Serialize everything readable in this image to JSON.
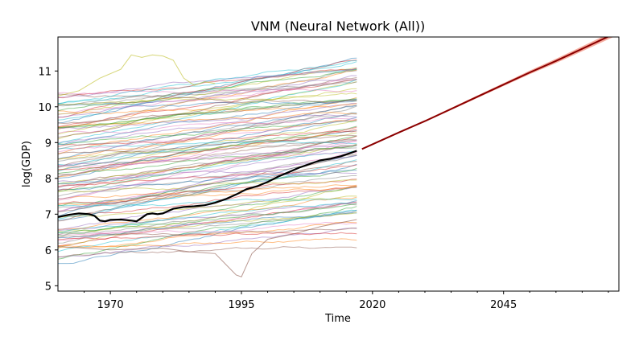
{
  "chart_data": {
    "type": "line",
    "title": "VNM (Neural Network (All))",
    "xlabel": "Time",
    "ylabel": "log(GDP)",
    "xlim": [
      1960,
      2067
    ],
    "ylim": [
      4.85,
      11.95
    ],
    "x_ticks": [
      1970,
      1995,
      2020,
      2045
    ],
    "x_tick_labels": [
      "1970",
      "1995",
      "2020",
      "2045"
    ],
    "y_ticks": [
      5,
      6,
      7,
      8,
      9,
      10,
      11
    ],
    "y_tick_labels": [
      "5",
      "6",
      "7",
      "8",
      "9",
      "10",
      "11"
    ],
    "grid": false,
    "legend": "none",
    "series": [
      {
        "role": "other-countries-history",
        "x_range": [
          1960,
          2017
        ],
        "count": 110,
        "y_start_range": [
          5.8,
          10.3
        ],
        "y_end_range": [
          6.5,
          11.3
        ],
        "highlighted_outlier": {
          "x": [
            1960,
            1964,
            1968,
            1972,
            1974,
            1976,
            1978,
            1980,
            1982,
            1984,
            1986,
            1988,
            1990
          ],
          "y": [
            10.3,
            10.45,
            10.8,
            11.05,
            11.45,
            11.38,
            11.45,
            11.42,
            11.3,
            10.8,
            10.6,
            10.7,
            10.65
          ],
          "color": "#bcbd22"
        },
        "dip_outlier": {
          "x": [
            1960,
            1970,
            1980,
            1985,
            1990,
            1992,
            1994,
            1995,
            1997,
            2000,
            2005,
            2010,
            2017
          ],
          "y": [
            6.1,
            6.0,
            6.05,
            5.95,
            5.9,
            5.6,
            5.3,
            5.25,
            5.9,
            6.3,
            6.45,
            6.65,
            6.85
          ],
          "color": "#8c564b"
        }
      },
      {
        "role": "vnm-history",
        "color": "#000000",
        "x": [
          1960,
          1962,
          1964,
          1966,
          1967,
          1968,
          1969,
          1970,
          1972,
          1974,
          1975,
          1976,
          1977,
          1978,
          1979,
          1980,
          1982,
          1984,
          1986,
          1988,
          1990,
          1992,
          1994,
          1996,
          1998,
          2000,
          2002,
          2004,
          2006,
          2008,
          2010,
          2012,
          2014,
          2016,
          2017
        ],
        "y": [
          6.92,
          6.98,
          7.02,
          7.0,
          6.95,
          6.82,
          6.8,
          6.84,
          6.85,
          6.82,
          6.8,
          6.9,
          7.0,
          7.02,
          7.0,
          7.02,
          7.15,
          7.2,
          7.22,
          7.25,
          7.32,
          7.42,
          7.55,
          7.7,
          7.78,
          7.9,
          8.05,
          8.17,
          8.3,
          8.4,
          8.5,
          8.55,
          8.62,
          8.72,
          8.77
        ]
      },
      {
        "role": "vnm-forecast",
        "color": "#8b0000",
        "band_color": "#f4a090",
        "x": [
          2018,
          2025,
          2030,
          2035,
          2040,
          2045,
          2050,
          2055,
          2060,
          2067
        ],
        "y": [
          8.82,
          9.28,
          9.6,
          9.94,
          10.28,
          10.62,
          10.96,
          11.28,
          11.62,
          12.1
        ],
        "band_halfwidth": [
          0.01,
          0.02,
          0.025,
          0.03,
          0.035,
          0.04,
          0.05,
          0.06,
          0.07,
          0.08
        ]
      }
    ]
  }
}
